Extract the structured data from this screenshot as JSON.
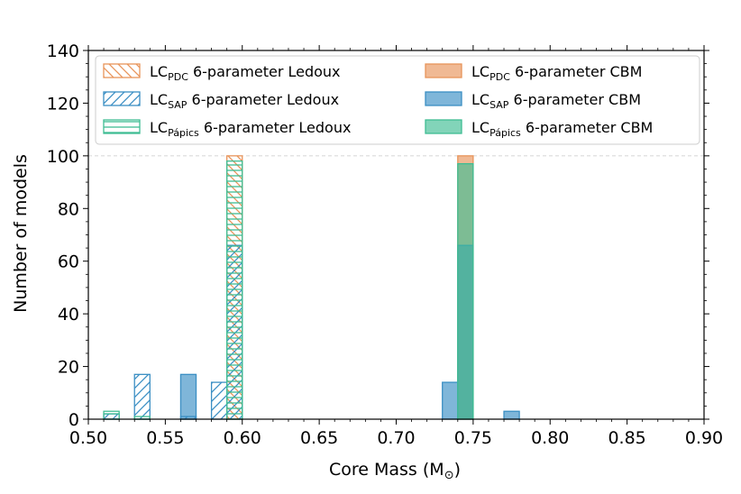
{
  "chart_data": {
    "type": "bar",
    "xlabel": "Core Mass (M",
    "xlabel_symbol": "⊙",
    "xlabel_close": ")",
    "ylabel": "Number of models",
    "xlim": [
      0.5,
      0.9
    ],
    "ylim": [
      0,
      140
    ],
    "xticks": [
      "0.50",
      "0.55",
      "0.60",
      "0.65",
      "0.70",
      "0.75",
      "0.80",
      "0.85",
      "0.90"
    ],
    "yticks": [
      "0",
      "20",
      "40",
      "60",
      "80",
      "100",
      "120",
      "140"
    ],
    "reference_line_y": 100,
    "bin_width": 0.01,
    "colors": {
      "pdc": "#e8945a",
      "sap": "#3b8fc4",
      "papics": "#3fbd93"
    },
    "legend": {
      "placement": "upper",
      "suffix_ledoux": " 6-parameter Ledoux",
      "suffix_cbm": " 6-parameter CBM",
      "prefix": "LC",
      "sub_pdc": "PDC",
      "sub_sap": "SAP",
      "sub_papics": "Pápics"
    },
    "series": [
      {
        "key": "pdc_ledoux",
        "style": "hatch-back",
        "color": "#e8945a",
        "bins": [
          [
            0.59,
            100
          ]
        ]
      },
      {
        "key": "sap_ledoux",
        "style": "hatch-fwd",
        "color": "#3b8fc4",
        "bins": [
          [
            0.51,
            2
          ],
          [
            0.53,
            17
          ],
          [
            0.56,
            1
          ],
          [
            0.58,
            14
          ],
          [
            0.59,
            66
          ]
        ]
      },
      {
        "key": "papics_ledoux",
        "style": "hatch-horiz",
        "color": "#3fbd93",
        "bins": [
          [
            0.51,
            3
          ],
          [
            0.53,
            1
          ],
          [
            0.59,
            98
          ]
        ]
      },
      {
        "key": "pdc_cbm",
        "style": "fill",
        "color": "#e8945a",
        "bins": [
          [
            0.74,
            100
          ]
        ]
      },
      {
        "key": "sap_cbm",
        "style": "fill",
        "color": "#3b8fc4",
        "bins": [
          [
            0.56,
            17
          ],
          [
            0.73,
            14
          ],
          [
            0.74,
            66
          ],
          [
            0.77,
            3
          ]
        ]
      },
      {
        "key": "papics_cbm",
        "style": "fill",
        "color": "#3fbd93",
        "bins": [
          [
            0.74,
            97
          ]
        ]
      }
    ]
  }
}
